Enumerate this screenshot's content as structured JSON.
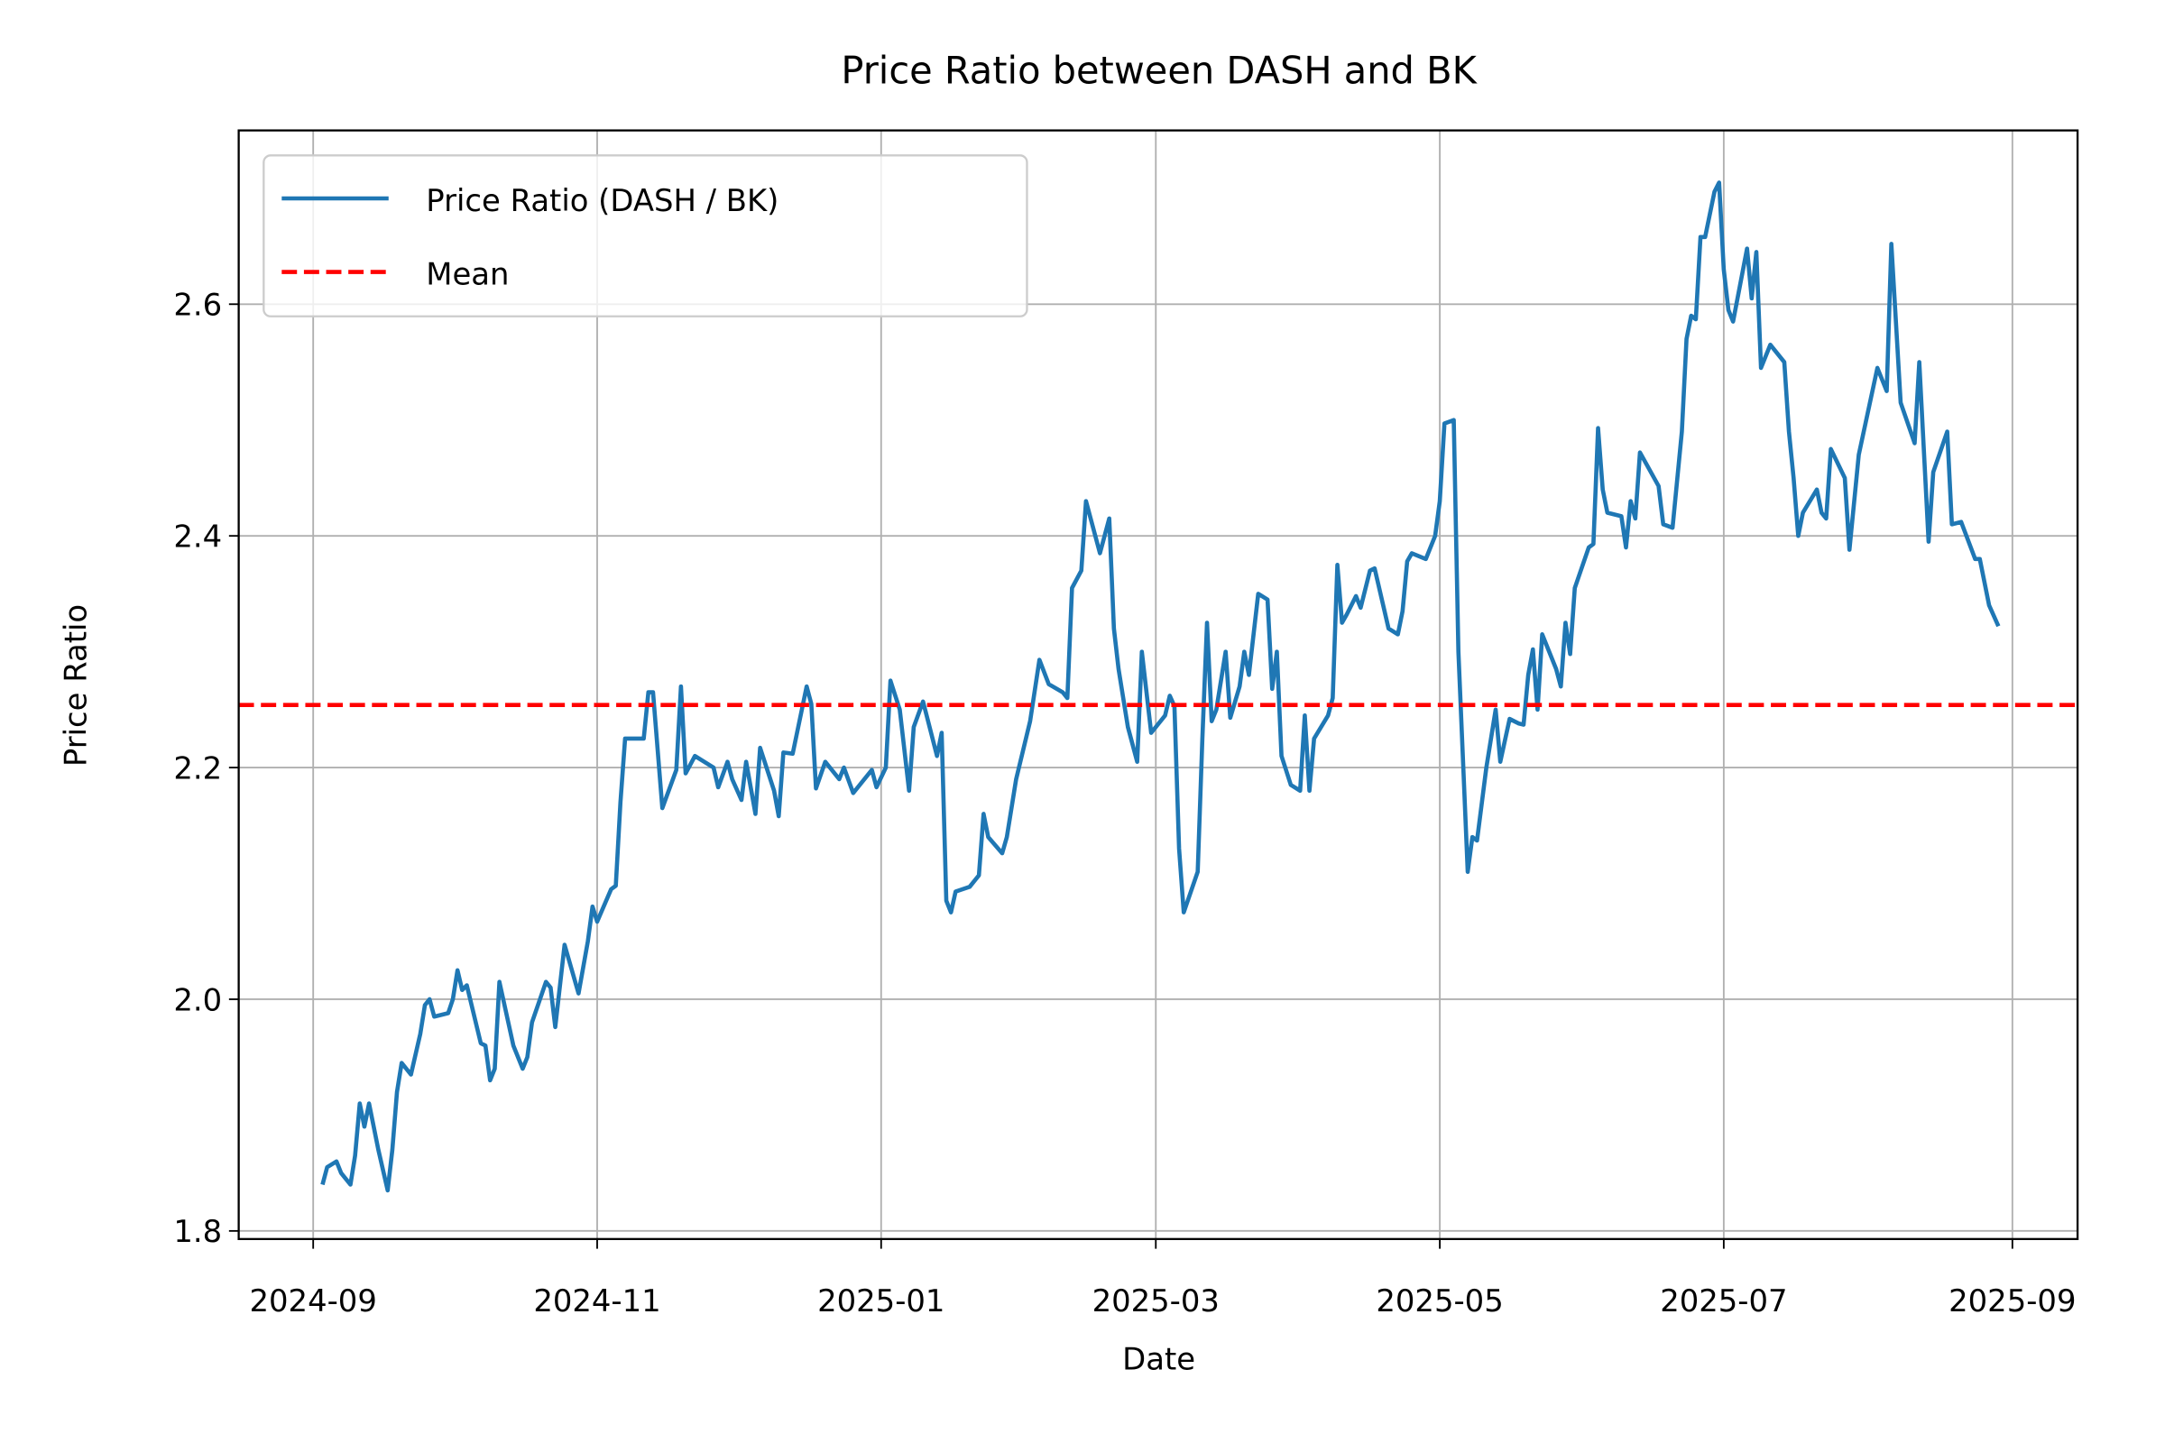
{
  "chart_data": {
    "type": "line",
    "title": "Price Ratio between DASH and BK",
    "xlabel": "Date",
    "ylabel": "Price Ratio",
    "x": [
      "2024-09-03",
      "2024-09-04",
      "2024-09-06",
      "2024-09-07",
      "2024-09-09",
      "2024-09-10",
      "2024-09-11",
      "2024-09-12",
      "2024-09-13",
      "2024-09-15",
      "2024-09-17",
      "2024-09-18",
      "2024-09-19",
      "2024-09-20",
      "2024-09-22",
      "2024-09-24",
      "2024-09-25",
      "2024-09-26",
      "2024-09-27",
      "2024-09-30",
      "2024-10-01",
      "2024-10-02",
      "2024-10-03",
      "2024-10-04",
      "2024-10-07",
      "2024-10-08",
      "2024-10-09",
      "2024-10-10",
      "2024-10-11",
      "2024-10-14",
      "2024-10-16",
      "2024-10-17",
      "2024-10-18",
      "2024-10-21",
      "2024-10-22",
      "2024-10-23",
      "2024-10-25",
      "2024-10-28",
      "2024-10-30",
      "2024-10-31",
      "2024-11-01",
      "2024-11-04",
      "2024-11-05",
      "2024-11-06",
      "2024-11-07",
      "2024-11-11",
      "2024-11-12",
      "2024-11-13",
      "2024-11-15",
      "2024-11-18",
      "2024-11-19",
      "2024-11-20",
      "2024-11-22",
      "2024-11-26",
      "2024-11-27",
      "2024-11-29",
      "2024-11-30",
      "2024-12-02",
      "2024-12-03",
      "2024-12-05",
      "2024-12-06",
      "2024-12-09",
      "2024-12-10",
      "2024-12-11",
      "2024-12-13",
      "2024-12-16",
      "2024-12-17",
      "2024-12-18",
      "2024-12-20",
      "2024-12-23",
      "2024-12-24",
      "2024-12-26",
      "2024-12-30",
      "2024-12-31",
      "2025-01-02",
      "2025-01-03",
      "2025-01-05",
      "2025-01-07",
      "2025-01-08",
      "2025-01-10",
      "2025-01-13",
      "2025-01-14",
      "2025-01-15",
      "2025-01-16",
      "2025-01-17",
      "2025-01-20",
      "2025-01-22",
      "2025-01-23",
      "2025-01-24",
      "2025-01-27",
      "2025-01-28",
      "2025-01-30",
      "2025-02-02",
      "2025-02-04",
      "2025-02-06",
      "2025-02-09",
      "2025-02-10",
      "2025-02-11",
      "2025-02-13",
      "2025-02-14",
      "2025-02-17",
      "2025-02-19",
      "2025-02-20",
      "2025-02-21",
      "2025-02-23",
      "2025-02-25",
      "2025-02-26",
      "2025-02-28",
      "2025-03-03",
      "2025-03-04",
      "2025-03-05",
      "2025-03-06",
      "2025-03-07",
      "2025-03-10",
      "2025-03-11",
      "2025-03-12",
      "2025-03-13",
      "2025-03-14",
      "2025-03-16",
      "2025-03-17",
      "2025-03-19",
      "2025-03-20",
      "2025-03-21",
      "2025-03-23",
      "2025-03-25",
      "2025-03-26",
      "2025-03-27",
      "2025-03-28",
      "2025-03-30",
      "2025-04-01",
      "2025-04-02",
      "2025-04-03",
      "2025-04-04",
      "2025-04-07",
      "2025-04-08",
      "2025-04-09",
      "2025-04-10",
      "2025-04-11",
      "2025-04-13",
      "2025-04-14",
      "2025-04-16",
      "2025-04-17",
      "2025-04-20",
      "2025-04-22",
      "2025-04-23",
      "2025-04-24",
      "2025-04-25",
      "2025-04-28",
      "2025-04-29",
      "2025-04-30",
      "2025-05-01",
      "2025-05-02",
      "2025-05-04",
      "2025-05-05",
      "2025-05-07",
      "2025-05-08",
      "2025-05-09",
      "2025-05-11",
      "2025-05-13",
      "2025-05-14",
      "2025-05-16",
      "2025-05-18",
      "2025-05-19",
      "2025-05-20",
      "2025-05-21",
      "2025-05-22",
      "2025-05-23",
      "2025-05-26",
      "2025-05-27",
      "2025-05-28",
      "2025-05-29",
      "2025-05-30",
      "2025-06-02",
      "2025-06-03",
      "2025-06-04",
      "2025-06-05",
      "2025-06-06",
      "2025-06-09",
      "2025-06-10",
      "2025-06-11",
      "2025-06-12",
      "2025-06-13",
      "2025-06-17",
      "2025-06-18",
      "2025-06-20",
      "2025-06-22",
      "2025-06-23",
      "2025-06-24",
      "2025-06-25",
      "2025-06-26",
      "2025-06-27",
      "2025-06-29",
      "2025-06-30",
      "2025-07-01",
      "2025-07-02",
      "2025-07-03",
      "2025-07-06",
      "2025-07-07",
      "2025-07-08",
      "2025-07-09",
      "2025-07-11",
      "2025-07-14",
      "2025-07-15",
      "2025-07-16",
      "2025-07-17",
      "2025-07-18",
      "2025-07-21",
      "2025-07-22",
      "2025-07-23",
      "2025-07-24",
      "2025-07-27",
      "2025-07-28",
      "2025-07-30",
      "2025-08-03",
      "2025-08-05",
      "2025-08-06",
      "2025-08-08",
      "2025-08-11",
      "2025-08-12",
      "2025-08-14",
      "2025-08-15",
      "2025-08-18",
      "2025-08-19",
      "2025-08-21",
      "2025-08-24",
      "2025-08-25",
      "2025-08-27",
      "2025-08-29"
    ],
    "series": [
      {
        "name": "Price Ratio (DASH / BK)",
        "color": "#1f77b4",
        "values": [
          1.84,
          1.855,
          1.86,
          1.85,
          1.84,
          1.865,
          1.91,
          1.89,
          1.91,
          1.87,
          1.835,
          1.87,
          1.92,
          1.945,
          1.935,
          1.97,
          1.995,
          2.0,
          1.985,
          1.988,
          2.0,
          2.025,
          2.008,
          2.012,
          1.962,
          1.96,
          1.93,
          1.94,
          2.015,
          1.96,
          1.94,
          1.95,
          1.98,
          2.015,
          2.01,
          1.976,
          2.047,
          2.005,
          2.05,
          2.08,
          2.067,
          2.095,
          2.098,
          2.17,
          2.225,
          2.225,
          2.265,
          2.265,
          2.165,
          2.198,
          2.27,
          2.195,
          2.21,
          2.2,
          2.183,
          2.205,
          2.19,
          2.172,
          2.205,
          2.16,
          2.217,
          2.18,
          2.158,
          2.213,
          2.212,
          2.27,
          2.255,
          2.182,
          2.205,
          2.19,
          2.2,
          2.178,
          2.198,
          2.183,
          2.2,
          2.275,
          2.25,
          2.18,
          2.235,
          2.257,
          2.21,
          2.23,
          2.085,
          2.075,
          2.093,
          2.097,
          2.107,
          2.16,
          2.14,
          2.126,
          2.14,
          2.19,
          2.24,
          2.293,
          2.272,
          2.265,
          2.26,
          2.355,
          2.37,
          2.43,
          2.385,
          2.415,
          2.32,
          2.285,
          2.235,
          2.205,
          2.3,
          2.23,
          2.245,
          2.262,
          2.253,
          2.13,
          2.075,
          2.11,
          2.225,
          2.325,
          2.24,
          2.25,
          2.3,
          2.243,
          2.27,
          2.3,
          2.28,
          2.35,
          2.345,
          2.268,
          2.3,
          2.21,
          2.185,
          2.18,
          2.245,
          2.18,
          2.225,
          2.245,
          2.26,
          2.375,
          2.325,
          2.332,
          2.348,
          2.338,
          2.37,
          2.372,
          2.32,
          2.315,
          2.335,
          2.378,
          2.385,
          2.38,
          2.39,
          2.4,
          2.43,
          2.497,
          2.5,
          2.3,
          2.11,
          2.14,
          2.137,
          2.2,
          2.25,
          2.205,
          2.242,
          2.238,
          2.237,
          2.28,
          2.302,
          2.25,
          2.315,
          2.285,
          2.27,
          2.325,
          2.298,
          2.355,
          2.39,
          2.393,
          2.493,
          2.44,
          2.42,
          2.417,
          2.39,
          2.43,
          2.415,
          2.472,
          2.443,
          2.41,
          2.407,
          2.49,
          2.57,
          2.59,
          2.587,
          2.658,
          2.658,
          2.697,
          2.705,
          2.63,
          2.595,
          2.585,
          2.648,
          2.605,
          2.645,
          2.545,
          2.565,
          2.55,
          2.49,
          2.45,
          2.4,
          2.42,
          2.44,
          2.42,
          2.415,
          2.475,
          2.45,
          2.388,
          2.47,
          2.545,
          2.525,
          2.652,
          2.515,
          2.48,
          2.55,
          2.395,
          2.455,
          2.49,
          2.41,
          2.412,
          2.38,
          2.38,
          2.34,
          2.322
        ]
      }
    ],
    "hlines": [
      {
        "name": "Mean",
        "value": 2.254,
        "color": "#ff0000",
        "linestyle": "dashed"
      }
    ],
    "xlim": [
      "2024-08-16",
      "2025-09-15"
    ],
    "xticks": [
      "2024-09",
      "2024-11",
      "2025-01",
      "2025-03",
      "2025-05",
      "2025-07",
      "2025-09"
    ],
    "ylim": [
      1.793,
      2.75
    ],
    "yticks": [
      1.8,
      {
        "value": 2,
        "label": "2.0"
      },
      2.2,
      2.4,
      2.6
    ],
    "grid": true,
    "legend": "upper left"
  }
}
